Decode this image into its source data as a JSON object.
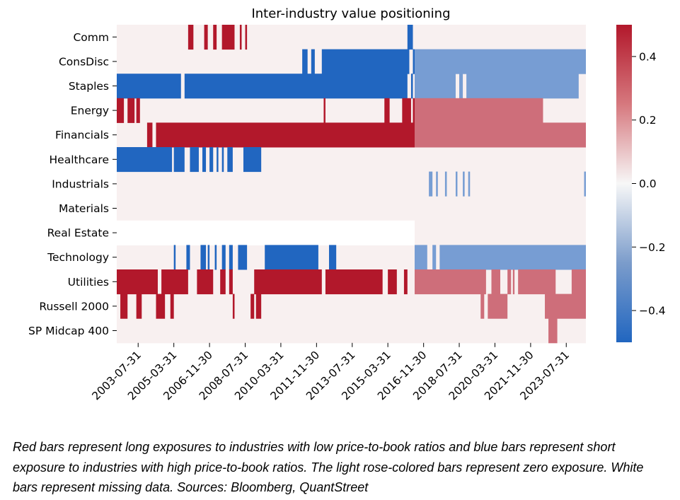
{
  "caption": "Red bars represent long exposures to industries with low price-to-book ratios and blue bars represent short exposure to industries with high price-to-book ratios. The light rose-colored bars represent zero exposure. White bars represent missing data. Sources: Bloomberg, QuantStreet",
  "chart_data": {
    "type": "heatmap",
    "title": "Inter-industry value positioning",
    "xlabel": "",
    "ylabel": "",
    "rows": [
      "Comm",
      "ConsDisc",
      "Staples",
      "Energy",
      "Financials",
      "Healthcare",
      "Industrials",
      "Materials",
      "Real Estate",
      "Technology",
      "Utilities",
      "Russell 2000",
      "SP Midcap 400"
    ],
    "x_start": "2002-07-31",
    "x_end": "2024-06-30",
    "x_ticks": [
      "2003-07-31",
      "2005-03-31",
      "2006-11-30",
      "2008-07-31",
      "2010-03-31",
      "2011-11-30",
      "2013-07-31",
      "2015-03-31",
      "2016-11-30",
      "2018-07-31",
      "2020-03-31",
      "2021-11-30",
      "2023-07-31"
    ],
    "colorbar": {
      "vmin": -0.5,
      "vmax": 0.5,
      "ticks": [
        0.4,
        0.2,
        0.0,
        -0.2,
        -0.4
      ],
      "tick_labels": [
        "0.4",
        "0.2",
        "0.0",
        "−0.2",
        "−0.4"
      ]
    },
    "colors": {
      "negative": "#2166c0",
      "positive": "#b2182b",
      "zero": "#f8f0f0",
      "missing": "#ffffff"
    },
    "missing": [
      {
        "row": "Real Estate",
        "from": "2002-07-31",
        "to": "2016-06-30"
      }
    ],
    "segments": [
      {
        "row": "Comm",
        "from": "2005-11-30",
        "to": "2006-02-28",
        "value": 0.5
      },
      {
        "row": "Comm",
        "from": "2006-08-31",
        "to": "2006-10-31",
        "value": 0.5
      },
      {
        "row": "Comm",
        "from": "2007-01-31",
        "to": "2007-03-31",
        "value": 0.5
      },
      {
        "row": "Comm",
        "from": "2007-06-30",
        "to": "2008-01-31",
        "value": 0.5
      },
      {
        "row": "Comm",
        "from": "2008-04-30",
        "to": "2008-05-31",
        "value": 0.5
      },
      {
        "row": "Comm",
        "from": "2008-07-31",
        "to": "2008-08-31",
        "value": 0.5
      },
      {
        "row": "Comm",
        "from": "2016-02-28",
        "to": "2016-05-31",
        "value": -0.5
      },
      {
        "row": "ConsDisc",
        "from": "2011-03-31",
        "to": "2011-06-30",
        "value": -0.5
      },
      {
        "row": "ConsDisc",
        "from": "2011-08-31",
        "to": "2011-10-31",
        "value": -0.5
      },
      {
        "row": "ConsDisc",
        "from": "2012-02-28",
        "to": "2016-03-31",
        "value": -0.5
      },
      {
        "row": "ConsDisc",
        "from": "2016-05-31",
        "to": "2016-06-30",
        "value": -0.5
      },
      {
        "row": "ConsDisc",
        "from": "2016-06-30",
        "to": "2024-06-30",
        "value": -0.3
      },
      {
        "row": "Staples",
        "from": "2002-07-31",
        "to": "2005-07-31",
        "value": -0.5
      },
      {
        "row": "Staples",
        "from": "2005-09-30",
        "to": "2016-02-28",
        "value": -0.5
      },
      {
        "row": "Staples",
        "from": "2016-04-30",
        "to": "2016-05-31",
        "value": -0.5
      },
      {
        "row": "Staples",
        "from": "2016-06-30",
        "to": "2018-05-31",
        "value": -0.3
      },
      {
        "row": "Staples",
        "from": "2018-07-31",
        "to": "2018-09-30",
        "value": -0.3
      },
      {
        "row": "Staples",
        "from": "2018-11-30",
        "to": "2024-02-28",
        "value": -0.3
      },
      {
        "row": "Energy",
        "from": "2002-07-31",
        "to": "2002-11-30",
        "value": 0.5
      },
      {
        "row": "Energy",
        "from": "2003-01-31",
        "to": "2003-05-31",
        "value": 0.5
      },
      {
        "row": "Energy",
        "from": "2003-06-30",
        "to": "2003-08-31",
        "value": 0.5
      },
      {
        "row": "Energy",
        "from": "2012-03-31",
        "to": "2012-04-30",
        "value": 0.5
      },
      {
        "row": "Energy",
        "from": "2015-01-31",
        "to": "2015-04-30",
        "value": 0.5
      },
      {
        "row": "Energy",
        "from": "2015-11-30",
        "to": "2016-04-30",
        "value": 0.5
      },
      {
        "row": "Energy",
        "from": "2016-05-31",
        "to": "2016-06-30",
        "value": 0.5
      },
      {
        "row": "Energy",
        "from": "2016-06-30",
        "to": "2022-06-30",
        "value": 0.3
      },
      {
        "row": "Financials",
        "from": "2003-12-31",
        "to": "2004-03-31",
        "value": 0.5
      },
      {
        "row": "Financials",
        "from": "2004-05-31",
        "to": "2016-06-30",
        "value": 0.5
      },
      {
        "row": "Financials",
        "from": "2016-06-30",
        "to": "2024-06-30",
        "value": 0.3
      },
      {
        "row": "Healthcare",
        "from": "2002-07-31",
        "to": "2005-02-28",
        "value": -0.5
      },
      {
        "row": "Healthcare",
        "from": "2005-03-31",
        "to": "2005-09-30",
        "value": -0.5
      },
      {
        "row": "Healthcare",
        "from": "2005-12-31",
        "to": "2006-05-31",
        "value": -0.5
      },
      {
        "row": "Healthcare",
        "from": "2006-07-31",
        "to": "2006-09-30",
        "value": -0.5
      },
      {
        "row": "Healthcare",
        "from": "2006-11-30",
        "to": "2007-01-31",
        "value": -0.5
      },
      {
        "row": "Healthcare",
        "from": "2007-03-31",
        "to": "2007-04-30",
        "value": -0.5
      },
      {
        "row": "Healthcare",
        "from": "2007-06-30",
        "to": "2007-07-31",
        "value": -0.5
      },
      {
        "row": "Healthcare",
        "from": "2007-09-30",
        "to": "2007-12-31",
        "value": -0.5
      },
      {
        "row": "Healthcare",
        "from": "2008-06-30",
        "to": "2009-04-30",
        "value": -0.5
      },
      {
        "row": "Industrials",
        "from": "2017-02-28",
        "to": "2017-04-30",
        "value": -0.3
      },
      {
        "row": "Industrials",
        "from": "2017-06-30",
        "to": "2017-07-31",
        "value": -0.3
      },
      {
        "row": "Industrials",
        "from": "2017-11-30",
        "to": "2017-12-31",
        "value": -0.3
      },
      {
        "row": "Industrials",
        "from": "2018-05-31",
        "to": "2018-06-30",
        "value": -0.3
      },
      {
        "row": "Industrials",
        "from": "2018-09-30",
        "to": "2018-10-31",
        "value": -0.3
      },
      {
        "row": "Industrials",
        "from": "2018-12-31",
        "to": "2019-01-31",
        "value": -0.3
      },
      {
        "row": "Industrials",
        "from": "2024-05-31",
        "to": "2024-06-30",
        "value": -0.3
      },
      {
        "row": "Technology",
        "from": "2005-03-31",
        "to": "2005-04-30",
        "value": -0.5
      },
      {
        "row": "Technology",
        "from": "2005-10-31",
        "to": "2005-12-31",
        "value": -0.5
      },
      {
        "row": "Technology",
        "from": "2006-06-30",
        "to": "2006-09-30",
        "value": -0.5
      },
      {
        "row": "Technology",
        "from": "2006-10-31",
        "to": "2006-11-30",
        "value": -0.5
      },
      {
        "row": "Technology",
        "from": "2007-02-28",
        "to": "2007-03-31",
        "value": -0.5
      },
      {
        "row": "Technology",
        "from": "2007-06-30",
        "to": "2007-08-31",
        "value": -0.5
      },
      {
        "row": "Technology",
        "from": "2007-10-31",
        "to": "2007-12-31",
        "value": -0.5
      },
      {
        "row": "Technology",
        "from": "2008-03-31",
        "to": "2008-08-31",
        "value": -0.5
      },
      {
        "row": "Technology",
        "from": "2009-06-30",
        "to": "2011-12-31",
        "value": -0.5
      },
      {
        "row": "Technology",
        "from": "2012-06-30",
        "to": "2012-10-31",
        "value": -0.5
      },
      {
        "row": "Technology",
        "from": "2016-06-30",
        "to": "2017-01-31",
        "value": -0.3
      },
      {
        "row": "Technology",
        "from": "2017-04-30",
        "to": "2017-06-30",
        "value": -0.3
      },
      {
        "row": "Technology",
        "from": "2017-08-31",
        "to": "2024-06-30",
        "value": -0.3
      },
      {
        "row": "Utilities",
        "from": "2002-07-31",
        "to": "2004-06-30",
        "value": 0.5
      },
      {
        "row": "Utilities",
        "from": "2004-08-31",
        "to": "2005-11-30",
        "value": 0.5
      },
      {
        "row": "Utilities",
        "from": "2006-04-30",
        "to": "2007-01-31",
        "value": 0.5
      },
      {
        "row": "Utilities",
        "from": "2007-05-31",
        "to": "2007-08-31",
        "value": 0.5
      },
      {
        "row": "Utilities",
        "from": "2007-10-31",
        "to": "2007-12-31",
        "value": 0.5
      },
      {
        "row": "Utilities",
        "from": "2008-12-31",
        "to": "2012-02-28",
        "value": 0.5
      },
      {
        "row": "Utilities",
        "from": "2012-04-30",
        "to": "2014-12-31",
        "value": 0.5
      },
      {
        "row": "Utilities",
        "from": "2015-03-31",
        "to": "2015-08-31",
        "value": 0.5
      },
      {
        "row": "Utilities",
        "from": "2015-12-31",
        "to": "2016-02-28",
        "value": 0.5
      },
      {
        "row": "Utilities",
        "from": "2016-06-30",
        "to": "2019-10-31",
        "value": 0.3
      },
      {
        "row": "Utilities",
        "from": "2020-01-31",
        "to": "2020-06-30",
        "value": 0.3
      },
      {
        "row": "Utilities",
        "from": "2020-10-31",
        "to": "2020-12-31",
        "value": 0.3
      },
      {
        "row": "Utilities",
        "from": "2021-01-31",
        "to": "2021-02-28",
        "value": 0.3
      },
      {
        "row": "Utilities",
        "from": "2021-04-30",
        "to": "2023-01-31",
        "value": 0.3
      },
      {
        "row": "Utilities",
        "from": "2023-10-31",
        "to": "2024-06-30",
        "value": 0.3
      },
      {
        "row": "Russell 2000",
        "from": "2002-09-30",
        "to": "2003-01-31",
        "value": 0.5
      },
      {
        "row": "Russell 2000",
        "from": "2003-06-30",
        "to": "2003-09-30",
        "value": 0.5
      },
      {
        "row": "Russell 2000",
        "from": "2004-05-31",
        "to": "2004-10-31",
        "value": 0.5
      },
      {
        "row": "Russell 2000",
        "from": "2005-01-31",
        "to": "2005-03-31",
        "value": 0.5
      },
      {
        "row": "Russell 2000",
        "from": "2007-12-31",
        "to": "2008-01-31",
        "value": 0.5
      },
      {
        "row": "Russell 2000",
        "from": "2008-10-31",
        "to": "2008-12-31",
        "value": 0.5
      },
      {
        "row": "Russell 2000",
        "from": "2009-01-31",
        "to": "2009-04-30",
        "value": 0.5
      },
      {
        "row": "Russell 2000",
        "from": "2019-07-31",
        "to": "2019-09-30",
        "value": 0.3
      },
      {
        "row": "Russell 2000",
        "from": "2019-11-30",
        "to": "2020-10-31",
        "value": 0.3
      },
      {
        "row": "Russell 2000",
        "from": "2022-07-31",
        "to": "2024-06-30",
        "value": 0.3
      },
      {
        "row": "SP Midcap 400",
        "from": "2022-09-30",
        "to": "2023-02-28",
        "value": 0.3
      }
    ]
  }
}
